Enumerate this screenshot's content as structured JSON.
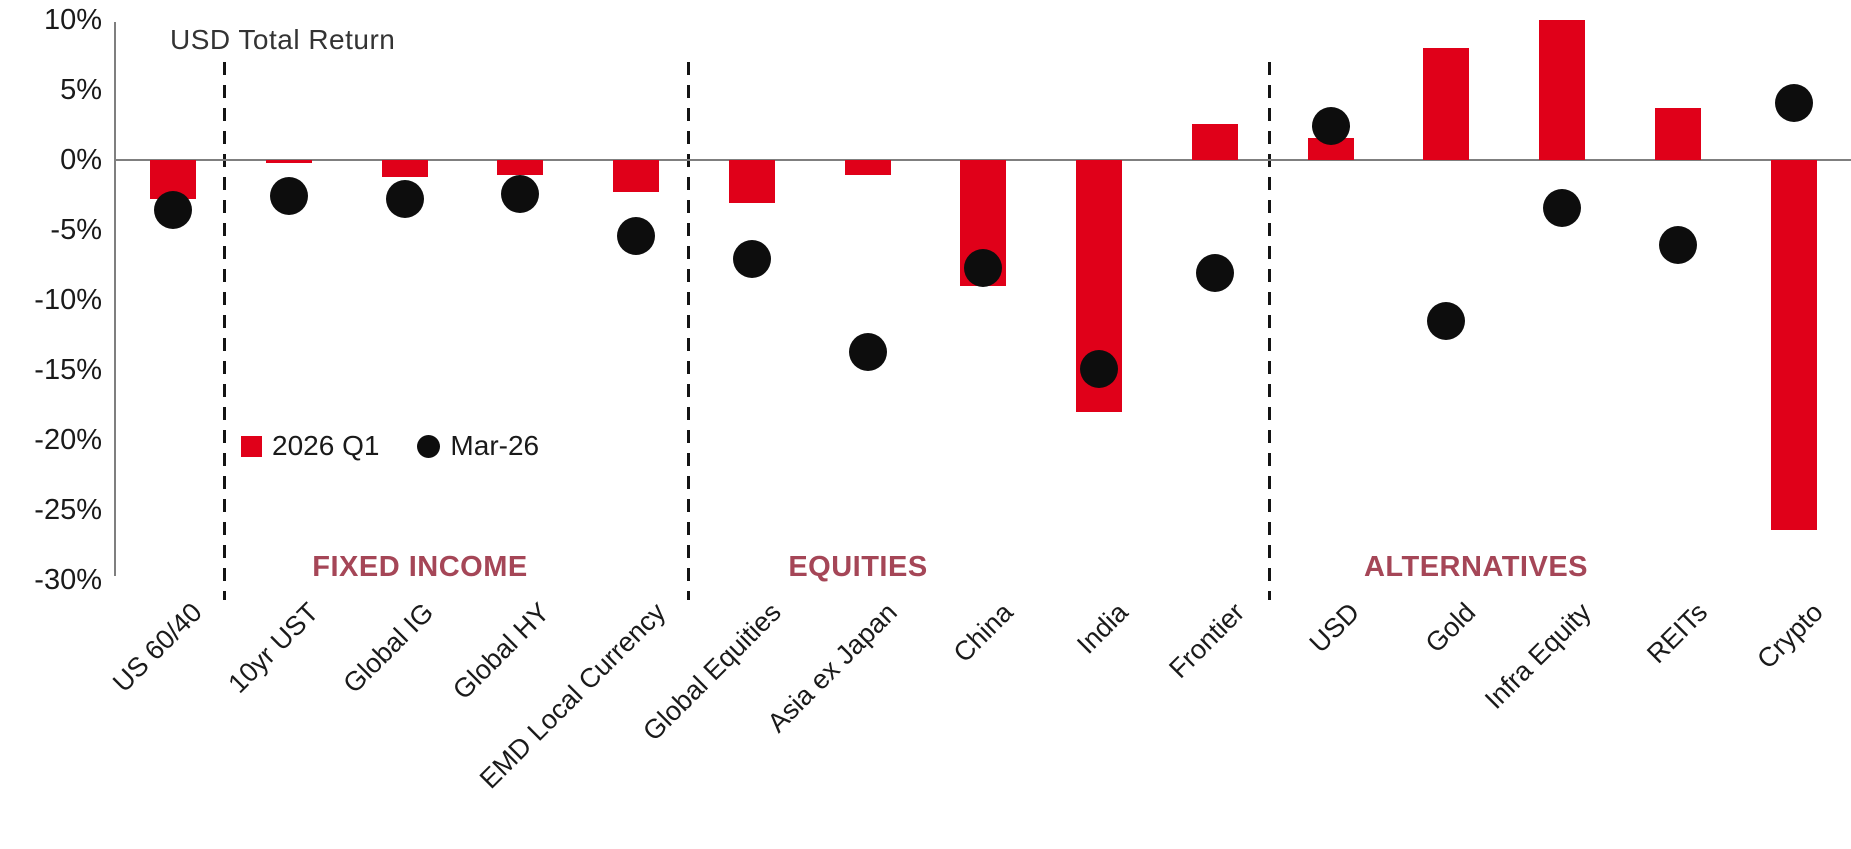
{
  "chart_data": {
    "type": "bar",
    "title": "USD Total Return",
    "categories": [
      "US 60/40",
      "10yr UST",
      "Global IG",
      "Global HY",
      "EMD Local Currency",
      "Global Equities",
      "Asia ex Japan",
      "China",
      "India",
      "Frontier",
      "USD",
      "Gold",
      "Infra Equity",
      "REITs",
      "Crypto"
    ],
    "series": [
      {
        "name": "2026 Q1",
        "type": "bar",
        "color": "#e00019",
        "values": [
          -2.8,
          -0.2,
          -1.2,
          -1.1,
          -2.3,
          -3.1,
          -1.1,
          -9.0,
          -18.0,
          2.6,
          1.6,
          8.0,
          10.0,
          3.7,
          -26.4
        ]
      },
      {
        "name": "Mar-26",
        "type": "scatter",
        "color": "#0d0d0d",
        "values": [
          -3.6,
          -2.6,
          -2.8,
          -2.4,
          -5.4,
          -7.1,
          -13.7,
          -7.7,
          -14.9,
          -8.1,
          2.4,
          -11.5,
          -3.4,
          -6.1,
          4.1
        ]
      }
    ],
    "groups": [
      {
        "label": "FIXED INCOME",
        "from_category": "US 60/40",
        "to_category": "EMD Local Currency"
      },
      {
        "label": "EQUITIES",
        "from_category": "Global Equities",
        "to_category": "Frontier"
      },
      {
        "label": "ALTERNATIVES",
        "from_category": "USD",
        "to_category": "Crypto"
      }
    ],
    "group_label_color": "#a54657",
    "separators_after_category_index": [
      0,
      4,
      9
    ],
    "y_axis": {
      "unit": "%",
      "ylim": [
        -30,
        10
      ],
      "grid": false,
      "ticks": [
        {
          "value": 10,
          "label": "10%"
        },
        {
          "value": 5,
          "label": "5%"
        },
        {
          "value": 0,
          "label": "0%"
        },
        {
          "value": -5,
          "label": "-5%"
        },
        {
          "value": -10,
          "label": "-10%"
        },
        {
          "value": -15,
          "label": "-15%"
        },
        {
          "value": -20,
          "label": "-20%"
        },
        {
          "value": -25,
          "label": "-25%"
        },
        {
          "value": -30,
          "label": "-30%"
        }
      ]
    },
    "legend": {
      "position": "inside-upper-left-of-lower-half",
      "items": [
        {
          "label": "2026 Q1",
          "marker": "square",
          "color": "#e00019"
        },
        {
          "label": "Mar-26",
          "marker": "circle",
          "color": "#0d0d0d"
        }
      ]
    }
  },
  "colors": {
    "bar_red": "#e00019",
    "dot_black": "#0d0d0d",
    "axis_gray": "#7f7f7f",
    "separator_black": "#141414",
    "group_label_maroon": "#a54657",
    "text": "#1a1a1a"
  }
}
